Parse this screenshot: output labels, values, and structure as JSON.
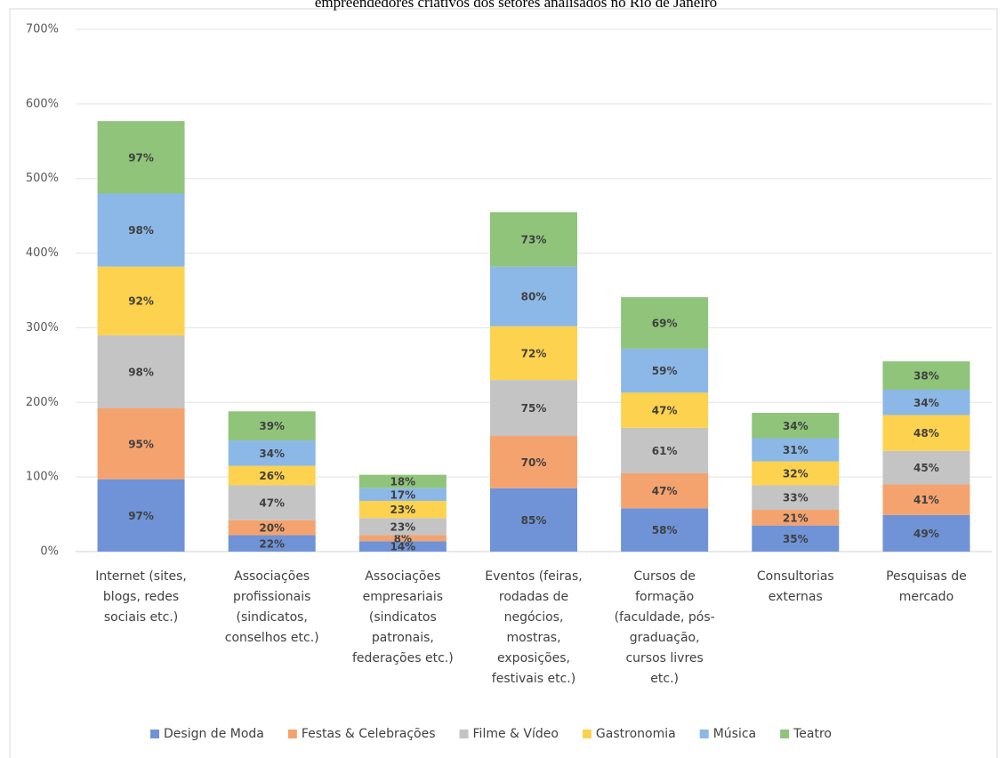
{
  "chart_data": {
    "type": "stacked_bar",
    "title": "empreendedores criativos dos setores analisados no Rio de Janeiro",
    "categories": [
      "Internet (sites,\nblogs, redes\nsociais etc.)",
      "Associações\nprofissionais\n(sindicatos,\nconselhos etc.)",
      "Associações\nempresariais\n(sindicatos\npatronais,\nfederações etc.)",
      "Eventos (feiras,\nrodadas de\nnegócios,\nmostras,\nexposições,\nfestivais etc.)",
      "Cursos de\nformação\n(faculdade, pós-\ngraduação,\ncursos livres\netc.)",
      "Consultorias\nexternas",
      "Pesquisas de\nmercado"
    ],
    "series": [
      {
        "name": "Design de Moda",
        "color": "#6f93d6",
        "values": [
          97,
          22,
          14,
          85,
          58,
          35,
          49
        ],
        "value_labels": [
          "97%",
          "22%",
          "14%",
          "85%",
          "58%",
          "35%",
          "49%"
        ]
      },
      {
        "name": "Festas & Celebrações",
        "color": "#f4a36f",
        "values": [
          95,
          20,
          8,
          70,
          47,
          21,
          41
        ],
        "value_labels": [
          "95%",
          "20%",
          "8%",
          "70%",
          "47%",
          "21%",
          "41%"
        ]
      },
      {
        "name": "Filme & Vídeo",
        "color": "#c4c4c4",
        "values": [
          98,
          47,
          23,
          75,
          61,
          33,
          45
        ],
        "value_labels": [
          "98%",
          "47%",
          "23%",
          "75%",
          "61%",
          "33%",
          "45%"
        ]
      },
      {
        "name": "Gastronomia",
        "color": "#fdd24e",
        "values": [
          92,
          26,
          23,
          72,
          47,
          32,
          48
        ],
        "value_labels": [
          "92%",
          "26%",
          "23%",
          "72%",
          "47%",
          "32%",
          "48%"
        ]
      },
      {
        "name": "Música",
        "color": "#8cb8e8",
        "values": [
          98,
          34,
          17,
          80,
          59,
          31,
          34
        ],
        "value_labels": [
          "98%",
          "34%",
          "17%",
          "80%",
          "59%",
          "31%",
          "34%"
        ]
      },
      {
        "name": "Teatro",
        "color": "#8fc47a",
        "values": [
          97,
          39,
          18,
          73,
          69,
          34,
          38
        ],
        "value_labels": [
          "97%",
          "39%",
          "18%",
          "73%",
          "69%",
          "34%",
          "38%"
        ]
      }
    ],
    "ylim": [
      0,
      700
    ],
    "yticks": [
      {
        "value": 0,
        "label": "0%"
      },
      {
        "value": 100,
        "label": "100%"
      },
      {
        "value": 200,
        "label": "200%"
      },
      {
        "value": 300,
        "label": "300%"
      },
      {
        "value": 400,
        "label": "400%"
      },
      {
        "value": 500,
        "label": "500%"
      },
      {
        "value": 600,
        "label": "600%"
      },
      {
        "value": 700,
        "label": "700%"
      }
    ],
    "grid": true,
    "legend": "bottom"
  }
}
